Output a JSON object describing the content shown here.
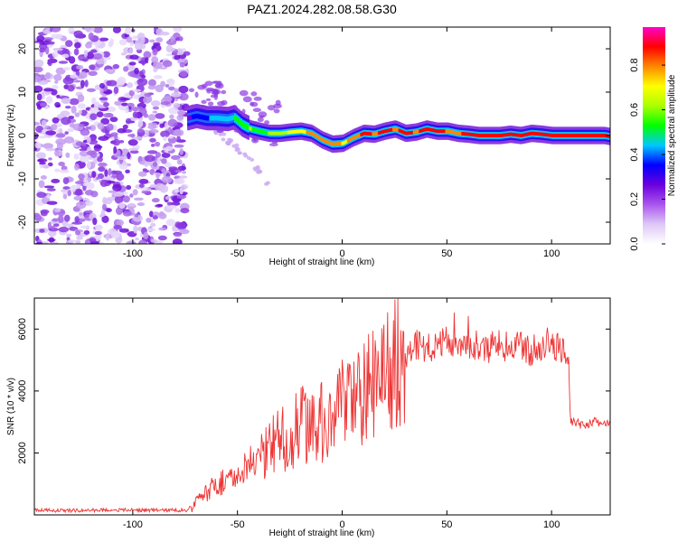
{
  "title": "PAZ1.2024.282.08.58.G30",
  "chart_data": [
    {
      "type": "heatmap",
      "xlabel": "Height of straight line (km)",
      "ylabel": "Frequency (Hz)",
      "xlim": [
        -147,
        128
      ],
      "ylim": [
        -25,
        25
      ],
      "xticks": [
        -100,
        -50,
        0,
        50,
        100
      ],
      "yticks": [
        -20,
        -10,
        0,
        10,
        20
      ],
      "noise_region_x": [
        -147,
        -74
      ],
      "ridge": {
        "x": [
          -74,
          -70,
          -65,
          -60,
          -55,
          -52,
          -48,
          -44,
          -40,
          -35,
          -30,
          -25,
          -20,
          -15,
          -10,
          -5,
          0,
          5,
          10,
          15,
          20,
          25,
          30,
          35,
          40,
          45,
          50,
          55,
          60,
          65,
          70,
          75,
          80,
          85,
          90,
          95,
          100,
          105,
          110,
          115,
          120,
          125,
          128
        ],
        "y": [
          4,
          4.5,
          4,
          4,
          3.8,
          4.2,
          2.5,
          1.5,
          1,
          0.5,
          0.5,
          0.8,
          1,
          0.5,
          -1,
          -2,
          -1.8,
          -0.5,
          0.5,
          0.3,
          1,
          1.5,
          0.5,
          0.8,
          1.5,
          1,
          1,
          0.5,
          0.3,
          0,
          0,
          0,
          0.3,
          0,
          0.5,
          0.3,
          0,
          0,
          0,
          0,
          0,
          0,
          -0.3
        ],
        "amplitude": [
          0.3,
          0.35,
          0.4,
          0.45,
          0.45,
          0.5,
          0.55,
          0.6,
          0.55,
          0.6,
          0.65,
          0.7,
          0.75,
          0.8,
          0.85,
          0.85,
          0.75,
          0.8,
          0.9,
          0.85,
          0.9,
          0.85,
          0.9,
          0.85,
          0.9,
          0.9,
          0.85,
          0.85,
          0.9,
          0.95,
          0.95,
          0.95,
          0.9,
          0.95,
          0.95,
          0.95,
          0.95,
          0.95,
          0.95,
          0.95,
          0.95,
          0.95,
          0.9
        ]
      },
      "side_branch": {
        "x": [
          -66,
          -60,
          -55,
          -50,
          -45,
          -40,
          -35
        ],
        "y": [
          4,
          1,
          -1,
          -3,
          -5,
          -8,
          -12
        ]
      },
      "colorbar": {
        "label": "Normalized spectral amplitude",
        "range": [
          0.0,
          0.97
        ],
        "ticks": [
          0.0,
          0.2,
          0.4,
          0.6,
          0.8
        ],
        "tick_labels": [
          "0.0",
          "0.2",
          "0.4",
          "0.6",
          "0.8"
        ],
        "colors": [
          "#ffffff",
          "#ddc8f6",
          "#aa55ee",
          "#6a00dd",
          "#0000ff",
          "#00c8ff",
          "#00ff00",
          "#aaff00",
          "#ffff00",
          "#ff8800",
          "#ff0000",
          "#ff00cc"
        ]
      }
    },
    {
      "type": "line",
      "xlabel": "Height of straight line (km)",
      "ylabel": "SNR (10 * v/v)",
      "xlim": [
        -147,
        128
      ],
      "ylim": [
        0,
        7000
      ],
      "xticks": [
        -100,
        -50,
        0,
        50,
        100
      ],
      "yticks": [
        2000,
        4000,
        6000
      ],
      "color": "#ee3333",
      "series": [
        {
          "x": [
            -147,
            -130,
            -110,
            -90,
            -78,
            -73,
            -70,
            -67,
            -64,
            -60,
            -57,
            -54,
            -51,
            -48,
            -45,
            -42,
            -39,
            -36,
            -33,
            -30,
            -27,
            -24,
            -21,
            -18,
            -15,
            -12,
            -9,
            -6,
            -3,
            0,
            3,
            6,
            9,
            12,
            15,
            18,
            21,
            24,
            27,
            30,
            33,
            36,
            40,
            45,
            50,
            55,
            60,
            65,
            70,
            75,
            80,
            85,
            90,
            95,
            100,
            105,
            108,
            109,
            110,
            115,
            120,
            125,
            128
          ],
          "y": [
            150,
            140,
            160,
            150,
            150,
            180,
            400,
            600,
            800,
            900,
            1100,
            1200,
            1000,
            1300,
            1500,
            1700,
            1800,
            2000,
            2300,
            2500,
            2400,
            2600,
            2800,
            3000,
            2900,
            2700,
            3100,
            3200,
            3300,
            3500,
            3400,
            3700,
            3800,
            4100,
            4300,
            4500,
            4700,
            4900,
            5100,
            5200,
            5400,
            5500,
            5400,
            5500,
            5600,
            5600,
            5500,
            5500,
            5400,
            5500,
            5400,
            5500,
            5300,
            5400,
            5500,
            5400,
            5300,
            3000,
            3000,
            2900,
            3000,
            2950,
            2900
          ]
        }
      ]
    }
  ]
}
